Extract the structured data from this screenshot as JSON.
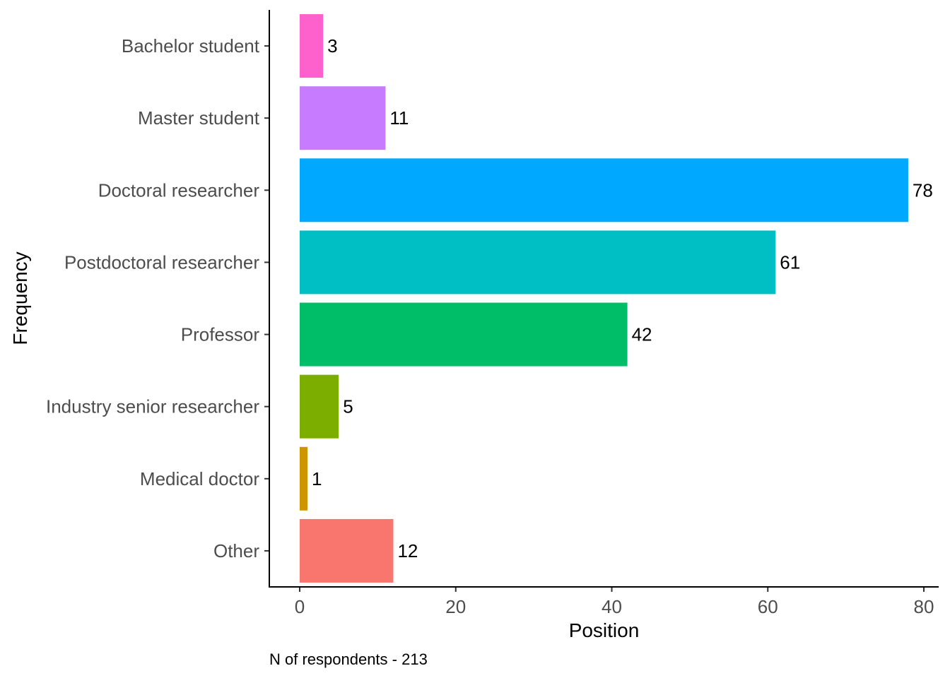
{
  "chart_data": {
    "type": "bar",
    "orientation": "horizontal",
    "categories": [
      "Bachelor student",
      "Master student",
      "Doctoral researcher",
      "Postdoctoral researcher",
      "Professor",
      "Industry senior researcher",
      "Medical doctor",
      "Other"
    ],
    "values": [
      3,
      11,
      78,
      61,
      42,
      5,
      1,
      12
    ],
    "colors": [
      "#FF61CC",
      "#C77CFF",
      "#00A9FF",
      "#00BFC4",
      "#00BE67",
      "#7CAE00",
      "#CD9600",
      "#F8766D"
    ],
    "xlabel": "Position",
    "ylabel": "Frequency",
    "xlim": [
      0,
      80
    ],
    "xticks": [
      0,
      20,
      40,
      60,
      80
    ],
    "caption": "N of respondents - 213",
    "grid": false,
    "legend": "none"
  }
}
